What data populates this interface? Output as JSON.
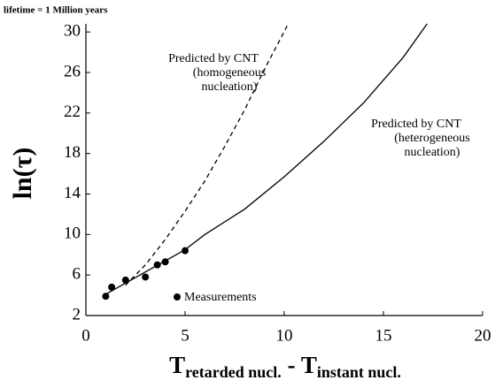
{
  "chart_data": {
    "type": "line",
    "title": "lifetime = 1 Million years",
    "y_label": "ln(τ)",
    "x_label": {
      "main1": "T",
      "sub1": "retarded nucl.",
      "sep": " - ",
      "main2": "T",
      "sub2": "instant nucl."
    },
    "xlim": [
      0,
      20
    ],
    "xticks": [
      0,
      5,
      10,
      15,
      20
    ],
    "ylim": [
      2,
      30.8
    ],
    "yticks": [
      2,
      6,
      10,
      14,
      18,
      22,
      26,
      30
    ],
    "series": [
      {
        "name": "Measurements",
        "mode": "markers",
        "color": "#000000",
        "x": [
          1.0,
          1.3,
          2.0,
          3.0,
          3.6,
          4.0,
          5.0
        ],
        "values": [
          3.9,
          4.8,
          5.5,
          5.8,
          7.0,
          7.3,
          8.4
        ]
      },
      {
        "mode": "line",
        "dash": false,
        "color": "#000000",
        "x": [
          1.0,
          5.0
        ],
        "values": [
          4.1,
          8.5
        ]
      },
      {
        "mode": "line",
        "dash": true,
        "color": "#000000",
        "x": [
          2.0,
          3.0,
          4.0,
          5.0,
          6.0,
          7.0,
          8.0,
          9.0,
          10.2
        ],
        "values": [
          5.0,
          7.0,
          9.5,
          12.3,
          15.3,
          18.7,
          22.3,
          26.3,
          30.8
        ]
      },
      {
        "mode": "line",
        "dash": false,
        "color": "#000000",
        "x": [
          5.0,
          6.0,
          8.0,
          10.0,
          12.0,
          14.0,
          16.0,
          17.2
        ],
        "values": [
          8.5,
          10.0,
          12.5,
          15.7,
          19.2,
          23.0,
          27.5,
          30.8
        ]
      }
    ],
    "annotations": [
      {
        "lines": [
          "Predicted by CNT",
          "(homogeneous",
          "nucleation)"
        ]
      },
      {
        "lines": [
          "Predicted by CNT",
          "(heterogeneous",
          "nucleation)"
        ]
      }
    ]
  }
}
